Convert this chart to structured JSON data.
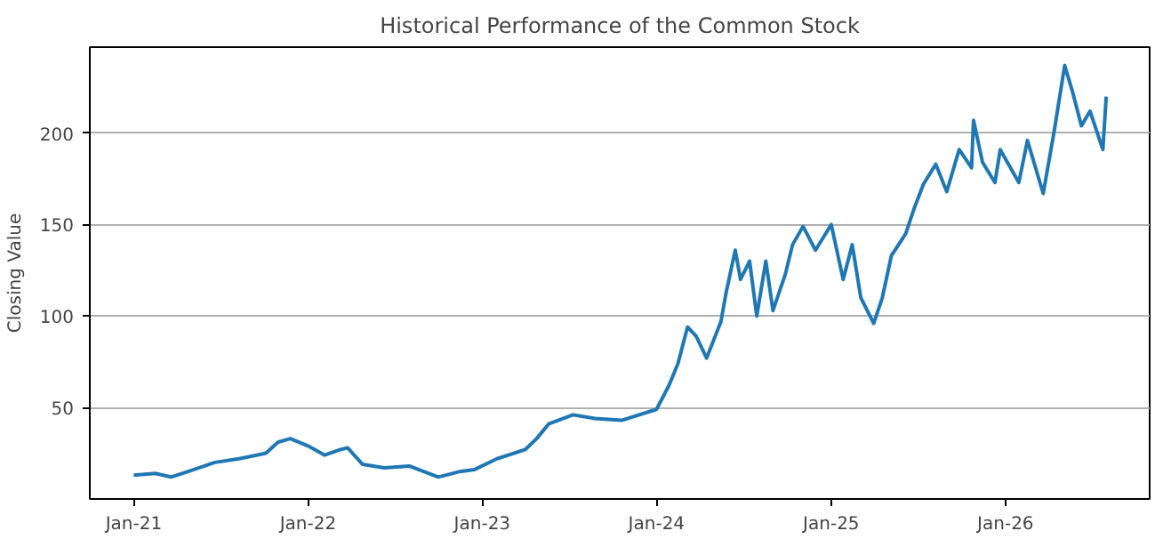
{
  "chart_data": {
    "type": "line",
    "title": "Historical Performance of the Common Stock",
    "ylabel": "Closing Value",
    "x": [
      "2021-01-01",
      "2021-02-15",
      "2021-03-20",
      "2021-04-25",
      "2021-06-20",
      "2021-08-10",
      "2021-10-05",
      "2021-10-30",
      "2021-11-25",
      "2022-01-01",
      "2022-02-05",
      "2022-03-10",
      "2022-03-25",
      "2022-04-25",
      "2022-06-10",
      "2022-08-01",
      "2022-10-01",
      "2022-11-15",
      "2022-12-15",
      "2023-02-01",
      "2023-04-01",
      "2023-04-25",
      "2023-05-20",
      "2023-07-10",
      "2023-08-25",
      "2023-10-20",
      "2024-01-01",
      "2024-01-27",
      "2024-02-15",
      "2024-03-06",
      "2024-03-24",
      "2024-04-15",
      "2024-05-15",
      "2024-05-26",
      "2024-06-14",
      "2024-06-25",
      "2024-07-14",
      "2024-07-29",
      "2024-08-17",
      "2024-09-01",
      "2024-09-27",
      "2024-10-12",
      "2024-11-03",
      "2024-11-29",
      "2025-01-01",
      "2025-01-26",
      "2025-02-14",
      "2025-03-04",
      "2025-03-31",
      "2025-04-18",
      "2025-05-07",
      "2025-06-06",
      "2025-06-24",
      "2025-07-13",
      "2025-08-08",
      "2025-08-31",
      "2025-09-26",
      "2025-10-22",
      "2025-10-26",
      "2025-11-14",
      "2025-12-10",
      "2025-12-21",
      "2026-01-29",
      "2026-02-16",
      "2026-03-21",
      "2026-04-13",
      "2026-05-05",
      "2026-05-21",
      "2026-06-09",
      "2026-06-27",
      "2026-07-24",
      "2026-07-31"
    ],
    "series": [
      {
        "color": "#1f77b4",
        "values": [
          13,
          14,
          12,
          15,
          20,
          22,
          25,
          31,
          33,
          29,
          24,
          27,
          28,
          19,
          17,
          18,
          12,
          15,
          16,
          22,
          27,
          33,
          41,
          46,
          44,
          43,
          49,
          62,
          74,
          94,
          89,
          77,
          97,
          113,
          136,
          120,
          130,
          100,
          130,
          103,
          123,
          139,
          149,
          136,
          150,
          120,
          139,
          110,
          96,
          110,
          133,
          145,
          159,
          172,
          183,
          168,
          191,
          181,
          207,
          184,
          173,
          191,
          173,
          196,
          167,
          201,
          237,
          223,
          204,
          212,
          191,
          220
        ]
      }
    ],
    "xlim": [
      "2020-10-01",
      "2026-10-30"
    ],
    "ylim": [
      0,
      247
    ],
    "xticks": [
      {
        "value": "2021-01-01",
        "label": "Jan-21"
      },
      {
        "value": "2022-01-01",
        "label": "Jan-22"
      },
      {
        "value": "2023-01-01",
        "label": "Jan-23"
      },
      {
        "value": "2024-01-01",
        "label": "Jan-24"
      },
      {
        "value": "2025-01-01",
        "label": "Jan-25"
      },
      {
        "value": "2026-01-01",
        "label": "Jan-26"
      }
    ],
    "yticks": [
      50,
      100,
      150,
      200
    ],
    "grid": "y",
    "line_style": "solid"
  }
}
